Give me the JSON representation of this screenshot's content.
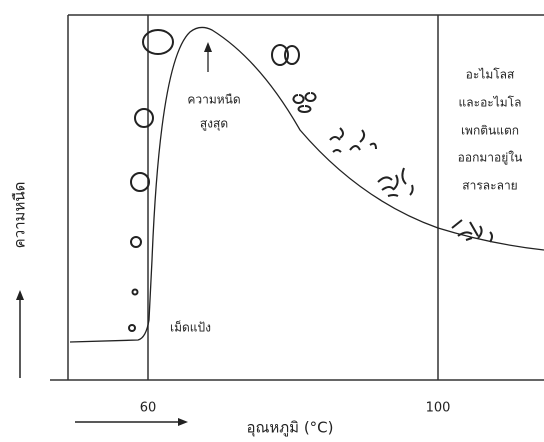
{
  "axes": {
    "y_label": "ความหนืด",
    "x_label": "อุณหภูมิ (°C)",
    "x_ticks": [
      60,
      100
    ]
  },
  "annotations": {
    "peak": [
      "ความหนืด",
      "สูงสุด"
    ],
    "granule": "เม็ดแป้ง",
    "release": [
      "อะไมโลส",
      "และอะไมโล",
      "เพกตินแตก",
      "ออกมาอยู่ใน",
      "สารละลาย"
    ]
  }
}
